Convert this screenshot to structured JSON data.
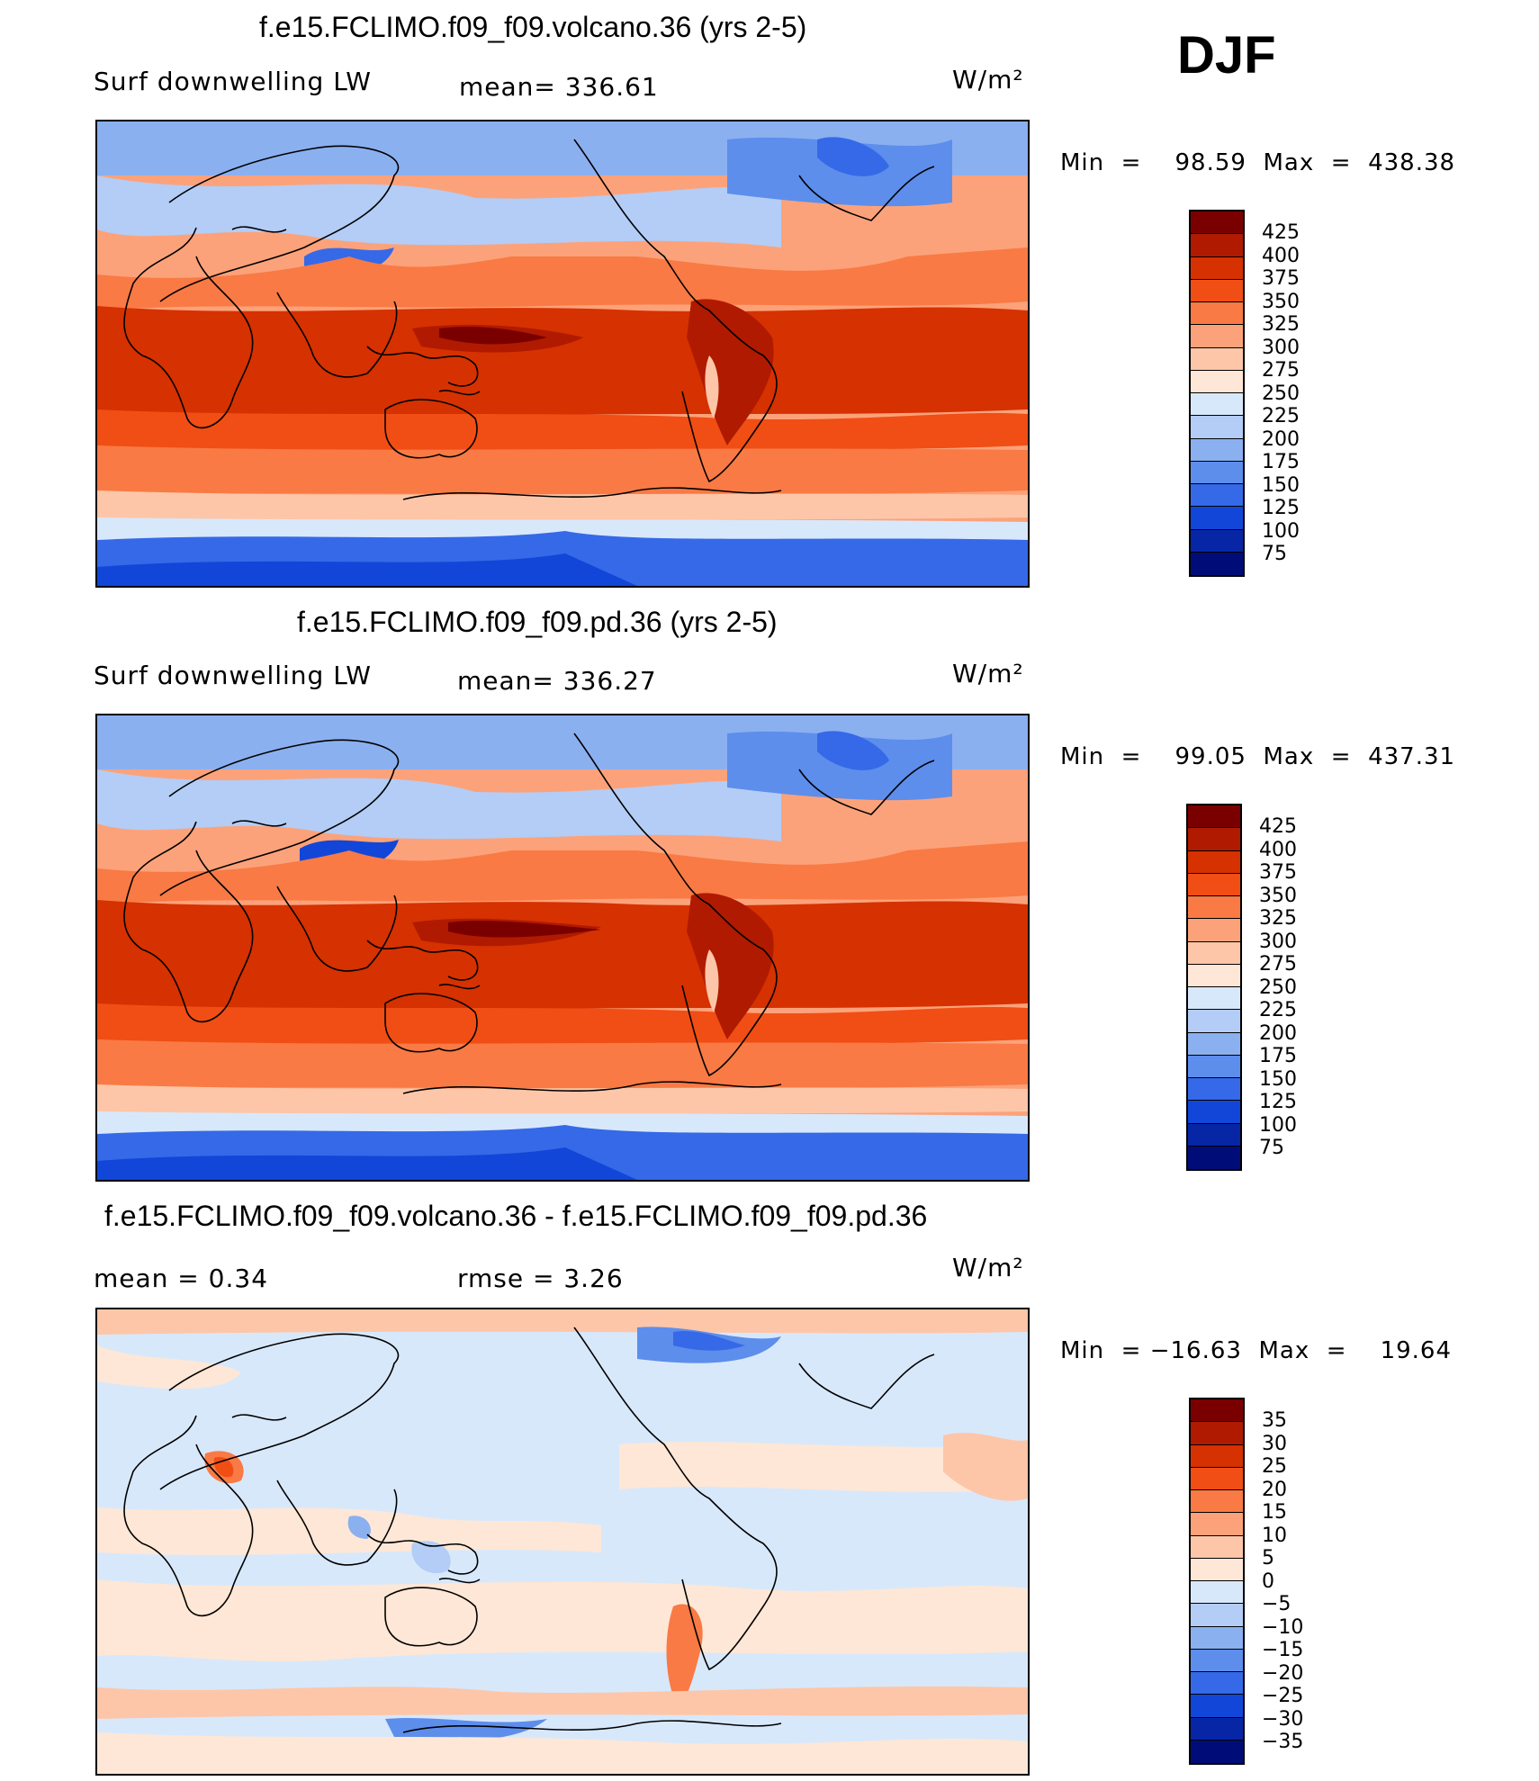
{
  "season": "DJF",
  "panels": [
    {
      "title": "f.e15.FCLIMO.f09_f09.volcano.36 (yrs 2-5)",
      "left_label": "Surf  downwelling  LW",
      "center_label": "mean=  336.61",
      "units": "W/m²",
      "minmax": "Min  =    98.59  Max  =  438.38",
      "colorbar": {
        "labels": [
          "425",
          "400",
          "375",
          "350",
          "325",
          "300",
          "275",
          "250",
          "225",
          "200",
          "175",
          "150",
          "125",
          "100",
          "75"
        ],
        "colors": [
          "#7a0000",
          "#b01a00",
          "#d63100",
          "#f04e14",
          "#f97a44",
          "#fca27a",
          "#fdc6a8",
          "#fee7d6",
          "#d8e8fb",
          "#b3cdf6",
          "#8bb0f0",
          "#5d8eec",
          "#3569e8",
          "#1246d8",
          "#0626a6",
          "#000d78"
        ]
      }
    },
    {
      "title": "f.e15.FCLIMO.f09_f09.pd.36 (yrs 2-5)",
      "left_label": "Surf  downwelling  LW",
      "center_label": "mean=  336.27",
      "units": "W/m²",
      "minmax": "Min  =    99.05  Max  =  437.31",
      "colorbar": {
        "labels": [
          "425",
          "400",
          "375",
          "350",
          "325",
          "300",
          "275",
          "250",
          "225",
          "200",
          "175",
          "150",
          "125",
          "100",
          "75"
        ],
        "colors": [
          "#7a0000",
          "#b01a00",
          "#d63100",
          "#f04e14",
          "#f97a44",
          "#fca27a",
          "#fdc6a8",
          "#fee7d6",
          "#d8e8fb",
          "#b3cdf6",
          "#8bb0f0",
          "#5d8eec",
          "#3569e8",
          "#1246d8",
          "#0626a6",
          "#000d78"
        ]
      }
    },
    {
      "title": "f.e15.FCLIMO.f09_f09.volcano.36 - f.e15.FCLIMO.f09_f09.pd.36",
      "left_label": "mean  =     0.34",
      "center_label": "rmse  =     3.26",
      "units": "W/m²",
      "minmax": "Min  = −16.63  Max  =    19.64",
      "colorbar": {
        "labels": [
          "35",
          "30",
          "25",
          "20",
          "15",
          "10",
          "5",
          "0",
          "−5",
          "−10",
          "−15",
          "−20",
          "−25",
          "−30",
          "−35"
        ],
        "colors": [
          "#7a0000",
          "#b01a00",
          "#d63100",
          "#f04e14",
          "#f97a44",
          "#fca27a",
          "#fdc6a8",
          "#fee7d6",
          "#d8e8fb",
          "#b3cdf6",
          "#8bb0f0",
          "#5d8eec",
          "#3569e8",
          "#1246d8",
          "#0626a6",
          "#000d78"
        ]
      }
    }
  ]
}
